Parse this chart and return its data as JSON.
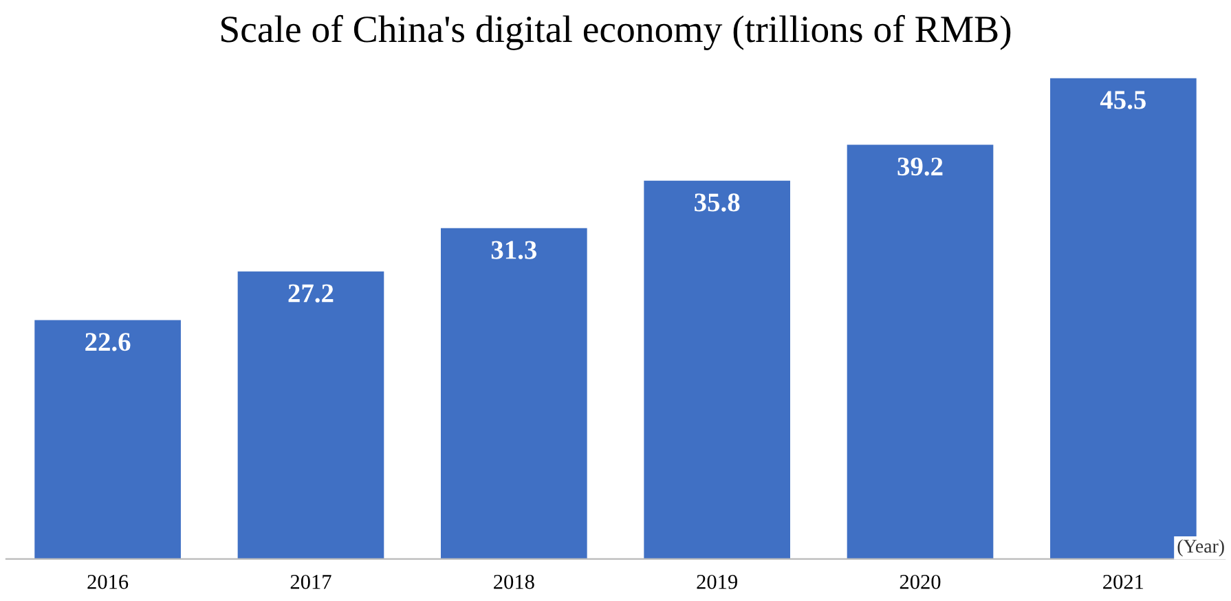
{
  "chart_data": {
    "type": "bar",
    "title": "Scale of China's digital economy (trillions of RMB)",
    "categories": [
      "2016",
      "2017",
      "2018",
      "2019",
      "2020",
      "2021"
    ],
    "values": [
      22.6,
      27.2,
      31.3,
      35.8,
      39.2,
      45.5
    ],
    "color": "#4070c4",
    "data_labels": true,
    "grid": false,
    "legend": false,
    "annotations": [
      "(Year)"
    ]
  }
}
